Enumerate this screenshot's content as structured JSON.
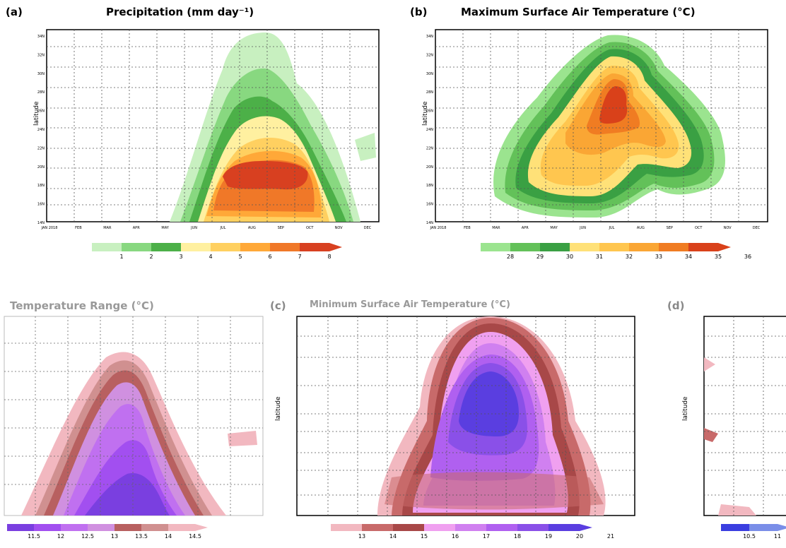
{
  "panels": {
    "a": {
      "label": "(a)",
      "title": "Precipitation (mm day⁻¹)"
    },
    "b": {
      "label": "(b)",
      "title": "Maximum Surface Air Temperature (°C)"
    },
    "c": {
      "label": "",
      "title": "Temperature Range (°C)"
    },
    "d": {
      "label": "(c)",
      "title": "Minimum Surface Air Temperature (°C)"
    },
    "e": {
      "label": "(d)",
      "title": ""
    }
  },
  "colors": {
    "precip": [
      "#c8f0c0",
      "#88d880",
      "#4cb048",
      "#fff0a0",
      "#ffd060",
      "#ffa838",
      "#f07828",
      "#d84020"
    ],
    "tmax": [
      "#9be48f",
      "#63c159",
      "#3aa043",
      "#ffe178",
      "#ffc64f",
      "#faa634",
      "#f07c22",
      "#d9411a"
    ],
    "range": [
      "#7a3fe0",
      "#a24ff0",
      "#c070f0",
      "#d090e0",
      "#b86060",
      "#d09090",
      "#f2b8c0"
    ],
    "tmin": [
      "#f2b8c0",
      "#c86a6a",
      "#a84848",
      "#f0a0f0",
      "#d080f0",
      "#b060f0",
      "#8a50e8",
      "#5a3ee0"
    ]
  },
  "chart_data": [
    {
      "type": "heatmap",
      "title": "Precipitation (mm day⁻¹)",
      "ylabel": "latitude",
      "x_ticks": [
        "JAN 2018",
        "FEB",
        "MAR",
        "APR",
        "MAY",
        "JUN",
        "JUL",
        "AUG",
        "SEP",
        "OCT",
        "NOV",
        "DEC"
      ],
      "y_ticks": [
        "14N",
        "16N",
        "18N",
        "20N",
        "22N",
        "24N",
        "26N",
        "28N",
        "30N",
        "32N",
        "34N"
      ],
      "colorbar": [
        1,
        2,
        3,
        4,
        5,
        6,
        7,
        8
      ],
      "grid": true
    },
    {
      "type": "heatmap",
      "title": "Maximum Surface Air Temperature (°C)",
      "ylabel": "latitude",
      "x_ticks": [
        "JAN 2018",
        "FEB",
        "MAR",
        "APR",
        "MAY",
        "JUN",
        "JUL",
        "AUG",
        "SEP",
        "OCT",
        "NOV",
        "DEC"
      ],
      "y_ticks": [
        "14N",
        "16N",
        "18N",
        "20N",
        "22N",
        "24N",
        "26N",
        "28N",
        "30N",
        "32N",
        "34N"
      ],
      "colorbar": [
        28,
        29,
        30,
        31,
        32,
        33,
        34,
        35,
        36
      ],
      "grid": true
    },
    {
      "type": "heatmap",
      "title": "Temperature Range (°C)",
      "colorbar": [
        11.5,
        12,
        12.5,
        13,
        13.5,
        14,
        14.5
      ],
      "grid": true
    },
    {
      "type": "heatmap",
      "title": "Minimum Surface Air Temperature (°C)",
      "ylabel": "latitude",
      "colorbar": [
        13,
        14,
        15,
        16,
        17,
        18,
        19,
        20,
        21
      ],
      "grid": true
    },
    {
      "type": "heatmap",
      "ylabel": "latitude",
      "colorbar": [
        10.5,
        11
      ],
      "grid": true
    }
  ]
}
